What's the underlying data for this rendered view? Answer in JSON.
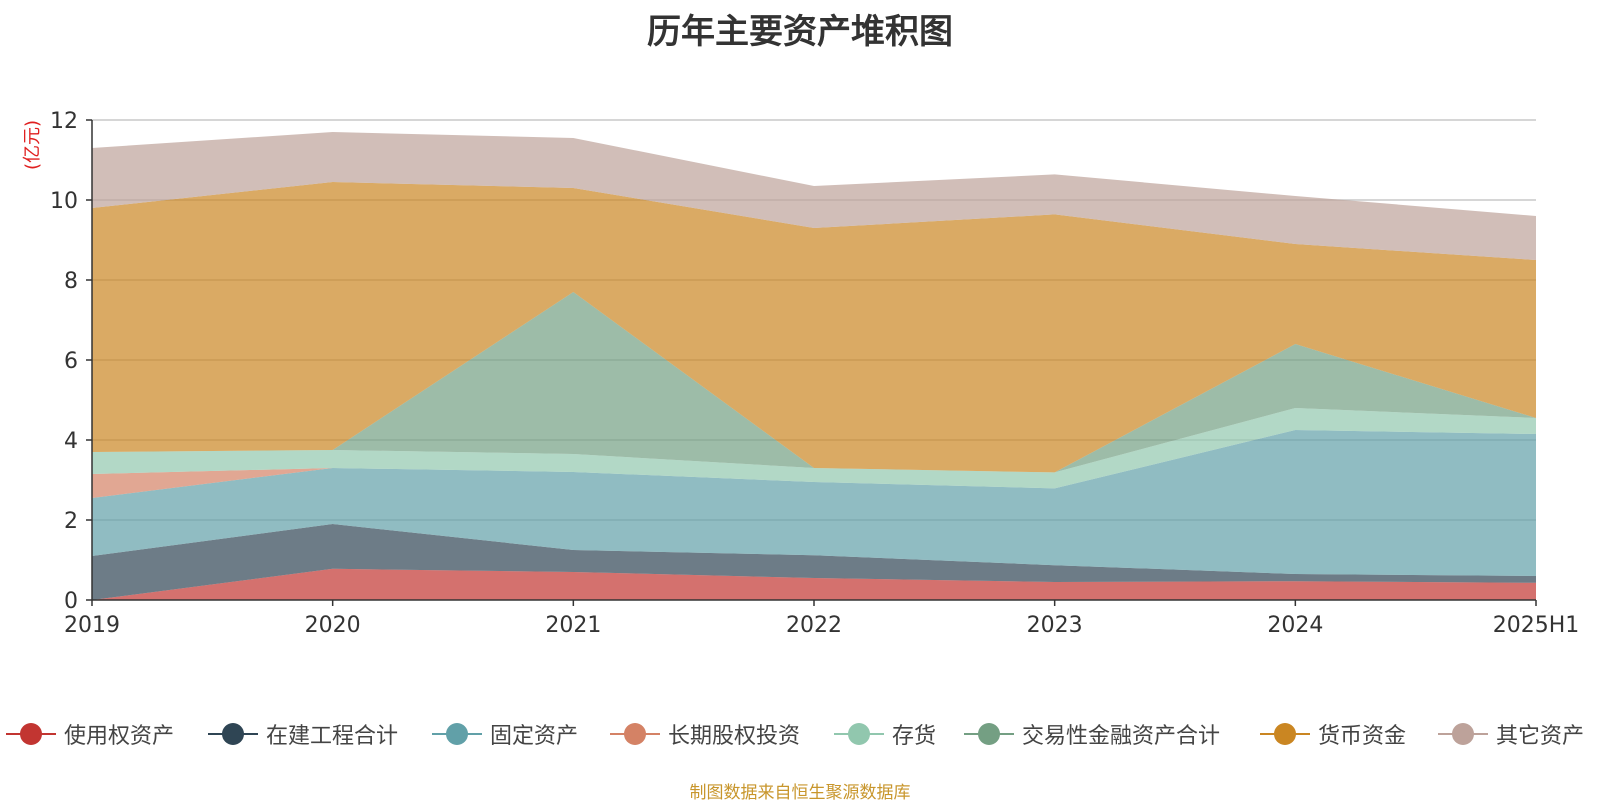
{
  "chart_data": {
    "type": "area",
    "stacked": true,
    "title": "历年主要资产堆积图",
    "ylabel": "(亿元)",
    "xlabel": "",
    "x": [
      "2019",
      "2020",
      "2021",
      "2022",
      "2023",
      "2024",
      "2025H1"
    ],
    "ylim": [
      0,
      12
    ],
    "yticks": [
      0,
      2,
      4,
      6,
      8,
      10,
      12
    ],
    "grid": true,
    "legend_position": "bottom",
    "series": [
      {
        "name": "使用权资产",
        "color": "#c23531",
        "values": [
          0.0,
          0.78,
          0.7,
          0.55,
          0.45,
          0.47,
          0.43
        ]
      },
      {
        "name": "在建工程合计",
        "color": "#2f4554",
        "values": [
          1.1,
          1.12,
          0.55,
          0.57,
          0.42,
          0.18,
          0.17
        ]
      },
      {
        "name": "固定资产",
        "color": "#61a0a8",
        "values": [
          1.45,
          1.4,
          1.95,
          1.83,
          1.92,
          3.6,
          3.55
        ]
      },
      {
        "name": "长期股权投资",
        "color": "#d48265",
        "values": [
          0.6,
          0.0,
          0.0,
          0.0,
          0.0,
          0.0,
          0.0
        ]
      },
      {
        "name": "存货",
        "color": "#91c7ae",
        "values": [
          0.55,
          0.45,
          0.45,
          0.35,
          0.4,
          0.55,
          0.4
        ]
      },
      {
        "name": "交易性金融资产合计",
        "color": "#749f83",
        "values": [
          0.0,
          0.0,
          4.05,
          0.0,
          0.0,
          1.6,
          0.0
        ]
      },
      {
        "name": "货币资金",
        "color": "#ca8622",
        "values": [
          6.1,
          6.7,
          2.6,
          6.0,
          6.45,
          2.5,
          3.95
        ]
      },
      {
        "name": "其它资产",
        "color": "#bda29a",
        "values": [
          1.5,
          1.25,
          1.25,
          1.05,
          1.0,
          1.2,
          1.1
        ]
      }
    ]
  },
  "source_note": "制图数据来自恒生聚源数据库"
}
